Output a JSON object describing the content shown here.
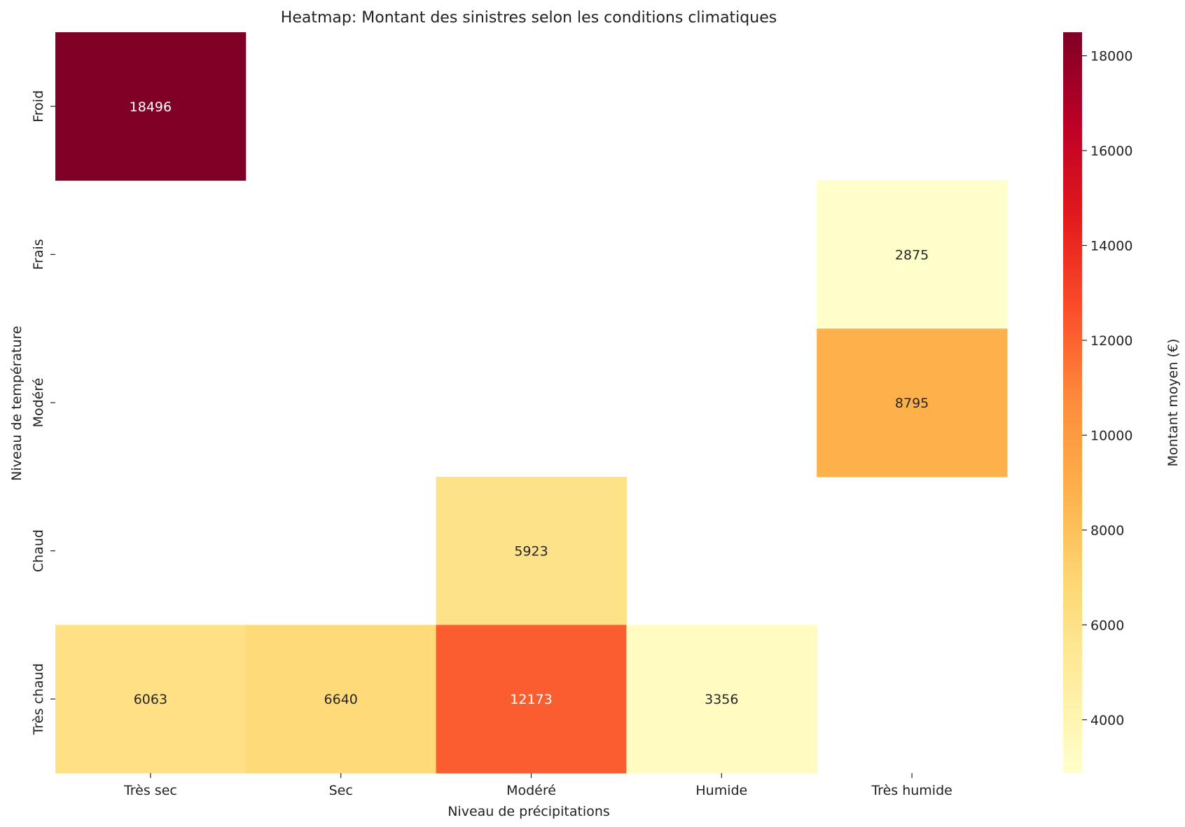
{
  "chart_data": {
    "type": "heatmap",
    "title": "Heatmap: Montant des sinistres selon les conditions climatiques",
    "xlabel": "Niveau de précipitations",
    "ylabel": "Niveau de température",
    "x_categories": [
      "Très sec",
      "Sec",
      "Modéré",
      "Humide",
      "Très humide"
    ],
    "y_categories": [
      "Froid",
      "Frais",
      "Modéré",
      "Chaud",
      "Très chaud"
    ],
    "values": [
      [
        18496,
        null,
        null,
        null,
        null
      ],
      [
        null,
        null,
        null,
        null,
        2875
      ],
      [
        null,
        null,
        null,
        null,
        8795
      ],
      [
        null,
        null,
        5923,
        null,
        null
      ],
      [
        6063,
        6640,
        12173,
        3356,
        null
      ]
    ],
    "colormap": "YlOrRd",
    "colorbar": {
      "label": "Montant moyen (€)",
      "min": 2875,
      "max": 18496,
      "ticks": [
        4000,
        6000,
        8000,
        10000,
        12000,
        14000,
        16000,
        18000
      ]
    },
    "grid": false
  }
}
